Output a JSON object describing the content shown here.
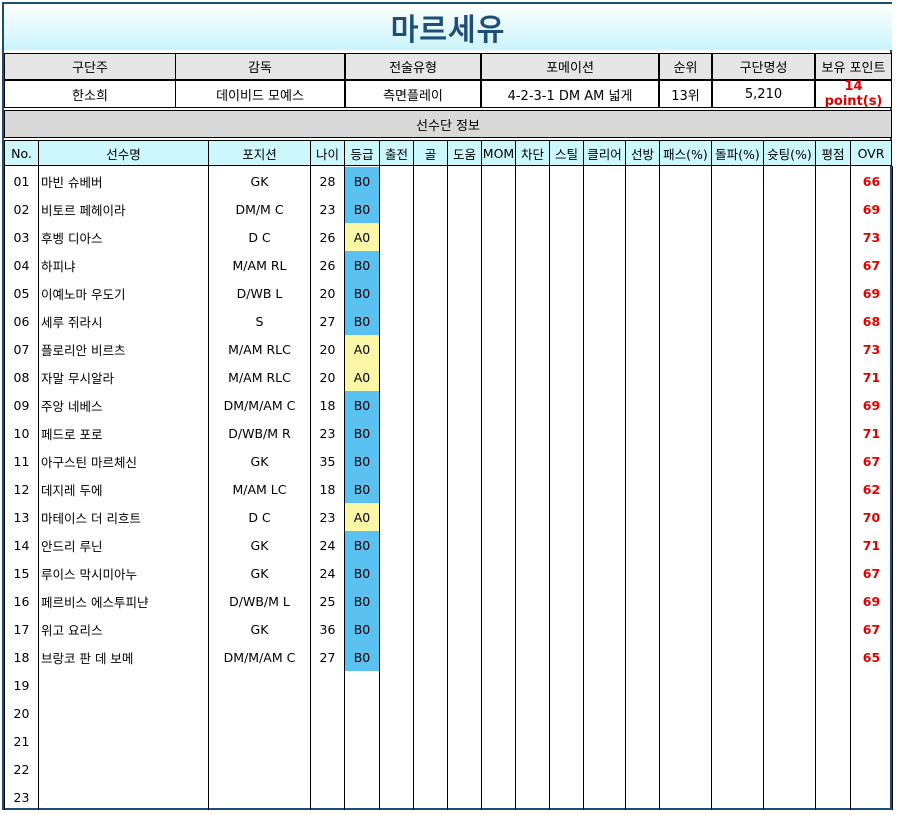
{
  "title": "마르세유",
  "club_headers": [
    "구단주",
    "감독",
    "전술유형",
    "포메이션",
    "순위",
    "구단명성",
    "보유 포인트"
  ],
  "club_values": [
    "한소희",
    "데이비드 모예스",
    "측면플레이",
    "4-2-3-1 DM AM 넓게",
    "13위",
    "5,210",
    "14 point(s)"
  ],
  "section_title": "선수단 정보",
  "columns": [
    "No.",
    "선수명",
    "포지션",
    "나이",
    "등급",
    "출전",
    "골",
    "도움",
    "MOM",
    "차단",
    "스틸",
    "클리어",
    "선방",
    "패스(%)",
    "돌파(%)",
    "슛팅(%)",
    "평점",
    "OVR"
  ],
  "players": [
    {
      "no": "01",
      "name": "마빈 슈베버",
      "pos": "GK",
      "age": "28",
      "grade": "B0",
      "ovr": "66"
    },
    {
      "no": "02",
      "name": "비토르 페헤이라",
      "pos": "DM/M C",
      "age": "23",
      "grade": "B0",
      "ovr": "69"
    },
    {
      "no": "03",
      "name": "후벵 디아스",
      "pos": "D C",
      "age": "26",
      "grade": "A0",
      "ovr": "73"
    },
    {
      "no": "04",
      "name": "하피냐",
      "pos": "M/AM RL",
      "age": "26",
      "grade": "B0",
      "ovr": "67"
    },
    {
      "no": "05",
      "name": "이예노마 우도기",
      "pos": "D/WB L",
      "age": "20",
      "grade": "B0",
      "ovr": "69"
    },
    {
      "no": "06",
      "name": "세루 쥐라시",
      "pos": "S",
      "age": "27",
      "grade": "B0",
      "ovr": "68"
    },
    {
      "no": "07",
      "name": "플로리안 비르츠",
      "pos": "M/AM RLC",
      "age": "20",
      "grade": "A0",
      "ovr": "73"
    },
    {
      "no": "08",
      "name": "자말 무시알라",
      "pos": "M/AM RLC",
      "age": "20",
      "grade": "A0",
      "ovr": "71"
    },
    {
      "no": "09",
      "name": "주앙 네베스",
      "pos": "DM/M/AM C",
      "age": "18",
      "grade": "B0",
      "ovr": "69"
    },
    {
      "no": "10",
      "name": "페드로 포로",
      "pos": "D/WB/M R",
      "age": "23",
      "grade": "B0",
      "ovr": "71"
    },
    {
      "no": "11",
      "name": "아구스틴 마르체신",
      "pos": "GK",
      "age": "35",
      "grade": "B0",
      "ovr": "67"
    },
    {
      "no": "12",
      "name": "데지레 두에",
      "pos": "M/AM LC",
      "age": "18",
      "grade": "B0",
      "ovr": "62"
    },
    {
      "no": "13",
      "name": "마테이스 더 리흐트",
      "pos": "D C",
      "age": "23",
      "grade": "A0",
      "ovr": "70"
    },
    {
      "no": "14",
      "name": "안드리 루닌",
      "pos": "GK",
      "age": "24",
      "grade": "B0",
      "ovr": "71"
    },
    {
      "no": "15",
      "name": "루이스 막시미아누",
      "pos": "GK",
      "age": "24",
      "grade": "B0",
      "ovr": "67"
    },
    {
      "no": "16",
      "name": "페르비스 에스투피냔",
      "pos": "D/WB/M L",
      "age": "25",
      "grade": "B0",
      "ovr": "69"
    },
    {
      "no": "17",
      "name": "위고 요리스",
      "pos": "GK",
      "age": "36",
      "grade": "B0",
      "ovr": "67"
    },
    {
      "no": "18",
      "name": "브랑코 판 데 보메",
      "pos": "DM/M/AM C",
      "age": "27",
      "grade": "B0",
      "ovr": "65"
    },
    {
      "no": "19"
    },
    {
      "no": "20"
    },
    {
      "no": "21"
    },
    {
      "no": "22"
    },
    {
      "no": "23"
    }
  ],
  "colors": {
    "grade_B": "#5bc1f0",
    "grade_A": "#fcf7a6",
    "ovr": "#e00000",
    "title": "#1f4e79",
    "column_header": "#ccf7fd"
  }
}
